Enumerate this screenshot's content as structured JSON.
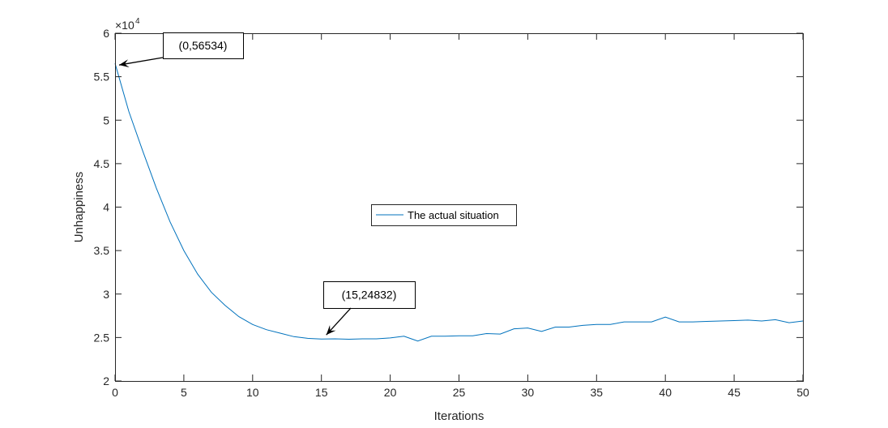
{
  "chart_data": {
    "type": "line",
    "xlabel": "Iterations",
    "ylabel": "Unhappiness",
    "xlim": [
      0,
      50
    ],
    "ylim": [
      20000,
      60000
    ],
    "x_ticks": [
      "0",
      "5",
      "10",
      "15",
      "20",
      "25",
      "30",
      "35",
      "40",
      "45",
      "50"
    ],
    "y_ticks": [
      "2",
      "2.5",
      "3",
      "3.5",
      "4",
      "4.5",
      "5",
      "5.5",
      "6"
    ],
    "y_exponent": "4",
    "grid": false,
    "legend_position": "center",
    "series": [
      {
        "name": "The actual situation",
        "color": "#0072BD",
        "x": [
          0,
          1,
          2,
          3,
          4,
          5,
          6,
          7,
          8,
          9,
          10,
          11,
          12,
          13,
          14,
          15,
          16,
          17,
          18,
          19,
          20,
          21,
          22,
          23,
          24,
          25,
          26,
          27,
          28,
          29,
          30,
          31,
          32,
          33,
          34,
          35,
          36,
          37,
          38,
          39,
          40,
          41,
          42,
          43,
          44,
          45,
          46,
          47,
          48,
          49,
          50
        ],
        "y": [
          56534,
          51000,
          46500,
          42200,
          38300,
          35000,
          32300,
          30200,
          28700,
          27400,
          26500,
          25900,
          25500,
          25100,
          24900,
          24832,
          24850,
          24800,
          24850,
          24850,
          24950,
          25150,
          24600,
          25150,
          25150,
          25200,
          25200,
          25450,
          25400,
          26000,
          26100,
          25700,
          26200,
          26200,
          26400,
          26500,
          26500,
          26800,
          26800,
          26800,
          27350,
          26800,
          26800,
          26850,
          26900,
          26950,
          27000,
          26900,
          27050,
          26700,
          26900
        ]
      }
    ],
    "annotations": [
      {
        "text": "(0,56534)",
        "x": 0,
        "y": 56534
      },
      {
        "text": "(15,24832)",
        "x": 15,
        "y": 24832
      }
    ]
  }
}
